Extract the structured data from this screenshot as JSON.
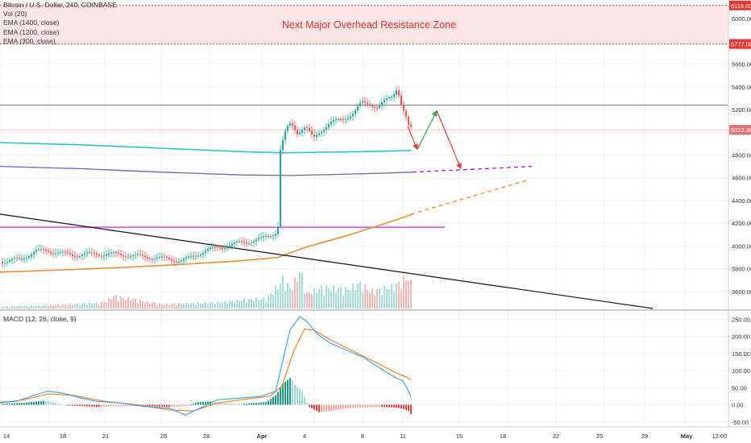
{
  "legend": {
    "symbol": "Bitcoin / U.S. Dollar, 240, COINBASE",
    "vol": "Vol (20)",
    "ema1": "EMA (1400, close)",
    "ema2": "EMA (1200, close)",
    "ema3": "EMA (300, close)"
  },
  "annotation": {
    "zone_text": "Next Major Overhead Resistance Zone"
  },
  "macd": {
    "title": "MACD (12, 26, close, 9)"
  },
  "colors": {
    "bg": "#ffffff",
    "up": "#26a69a",
    "down": "#ef5350",
    "grid": "#f2f2f2",
    "zone_fill": "#fde6e6",
    "zone_border": "#e53935",
    "ema_teal": "#27c4c4",
    "ema_purple": "#7e57c2",
    "ema_orange": "#f08d2e",
    "magenta": "#e040fb",
    "trend": "#111111",
    "macd_line": "#2196f3",
    "signal_line": "#ff6d00"
  },
  "chart_data": [
    {
      "type": "candlestick",
      "title": "Bitcoin / U.S. Dollar, 240, COINBASE",
      "ylim": [
        3450,
        6150
      ],
      "y_ticks": [
        3600,
        3800,
        4000,
        4200,
        4400,
        4600,
        4800,
        5000,
        5200,
        5400,
        5600,
        6000
      ],
      "y_tick_labels": [
        "3600.00",
        "3800.00",
        "4000.00",
        "4200.00",
        "4400.00",
        "4600.00",
        "4800.00",
        "5000.00",
        "5200.00",
        "5400.00",
        "5600.00",
        "6000.00"
      ],
      "x_tick_labels": [
        "14",
        "18",
        "21",
        "25",
        "28",
        "Apr",
        "4",
        "8",
        "11",
        "15",
        "18",
        "22",
        "25",
        "29",
        "May",
        "12:00"
      ],
      "resistance_zone": {
        "low": 5777,
        "high": 6116,
        "label_low": "5777.00",
        "label_high": "6116.00"
      },
      "current_price": {
        "value": 5022.3,
        "label": "5022.30"
      },
      "horizontal_level": 5240,
      "magenta_level": 4165,
      "price_path": [
        [
          0,
          3860
        ],
        [
          25,
          3880
        ],
        [
          45,
          3955
        ],
        [
          60,
          3960
        ],
        [
          90,
          3920
        ],
        [
          120,
          3930
        ],
        [
          150,
          3925
        ],
        [
          180,
          3905
        ],
        [
          210,
          3885
        ],
        [
          225,
          3870
        ],
        [
          235,
          3890
        ],
        [
          255,
          3960
        ],
        [
          275,
          3990
        ],
        [
          300,
          4030
        ],
        [
          325,
          4060
        ],
        [
          343,
          4120
        ],
        [
          346,
          4180
        ],
        [
          348,
          4820
        ],
        [
          352,
          4920
        ],
        [
          356,
          5020
        ],
        [
          362,
          5080
        ],
        [
          370,
          5000
        ],
        [
          380,
          5050
        ],
        [
          390,
          4940
        ],
        [
          398,
          5010
        ],
        [
          410,
          5080
        ],
        [
          420,
          5100
        ],
        [
          430,
          5130
        ],
        [
          440,
          5170
        ],
        [
          450,
          5260
        ],
        [
          460,
          5250
        ],
        [
          470,
          5220
        ],
        [
          480,
          5280
        ],
        [
          488,
          5320
        ],
        [
          494,
          5400
        ],
        [
          500,
          5220
        ],
        [
          504,
          5150
        ],
        [
          508,
          5050
        ],
        [
          512,
          5022
        ]
      ],
      "volume_path": [
        [
          0,
          0.05
        ],
        [
          60,
          0.07
        ],
        [
          130,
          0.15
        ],
        [
          140,
          0.3
        ],
        [
          200,
          0.1
        ],
        [
          270,
          0.15
        ],
        [
          330,
          0.25
        ],
        [
          345,
          0.55
        ],
        [
          350,
          0.7
        ],
        [
          360,
          0.45
        ],
        [
          372,
          0.9
        ],
        [
          380,
          0.35
        ],
        [
          400,
          0.5
        ],
        [
          430,
          0.45
        ],
        [
          445,
          0.6
        ],
        [
          460,
          0.4
        ],
        [
          490,
          0.55
        ],
        [
          505,
          0.75
        ],
        [
          512,
          0.5
        ]
      ],
      "ema_teal": [
        [
          0,
          4910
        ],
        [
          100,
          4890
        ],
        [
          200,
          4860
        ],
        [
          300,
          4830
        ],
        [
          350,
          4820
        ],
        [
          400,
          4825
        ],
        [
          450,
          4830
        ],
        [
          510,
          4840
        ]
      ],
      "ema_purple": [
        [
          0,
          4700
        ],
        [
          100,
          4680
        ],
        [
          200,
          4650
        ],
        [
          300,
          4625
        ],
        [
          360,
          4620
        ],
        [
          420,
          4630
        ],
        [
          470,
          4640
        ],
        [
          512,
          4650
        ]
      ],
      "ema_orange": [
        [
          0,
          3770
        ],
        [
          80,
          3790
        ],
        [
          150,
          3810
        ],
        [
          230,
          3840
        ],
        [
          300,
          3870
        ],
        [
          345,
          3900
        ],
        [
          380,
          3990
        ],
        [
          430,
          4090
        ],
        [
          470,
          4180
        ],
        [
          500,
          4250
        ],
        [
          512,
          4280
        ]
      ],
      "trendline": [
        [
          0,
          4280
        ],
        [
          810,
          3450
        ]
      ],
      "projection_purple": [
        [
          512,
          4650
        ],
        [
          660,
          4700
        ]
      ],
      "projection_orange": [
        [
          510,
          4280
        ],
        [
          655,
          4580
        ]
      ],
      "forecast_path": [
        [
          506,
          5050
        ],
        [
          518,
          4850
        ],
        [
          542,
          5190
        ],
        [
          572,
          4680
        ]
      ]
    },
    {
      "type": "macd",
      "title": "MACD (12, 26, close, 9)",
      "ylim": [
        -60,
        270
      ],
      "y_ticks": [
        -50,
        0,
        50,
        100,
        150,
        200,
        250
      ],
      "y_tick_labels": [
        "-50.00",
        "0.00",
        "50.00",
        "100.00",
        "150.00",
        "200.00",
        "250.00"
      ],
      "macd_line": [
        [
          0,
          8
        ],
        [
          20,
          10
        ],
        [
          45,
          30
        ],
        [
          60,
          40
        ],
        [
          80,
          33
        ],
        [
          100,
          20
        ],
        [
          120,
          10
        ],
        [
          150,
          5
        ],
        [
          180,
          -5
        ],
        [
          210,
          -10
        ],
        [
          230,
          -30
        ],
        [
          250,
          -8
        ],
        [
          270,
          15
        ],
        [
          300,
          20
        ],
        [
          325,
          25
        ],
        [
          342,
          40
        ],
        [
          350,
          120
        ],
        [
          360,
          220
        ],
        [
          372,
          258
        ],
        [
          380,
          245
        ],
        [
          395,
          205
        ],
        [
          410,
          180
        ],
        [
          430,
          160
        ],
        [
          450,
          140
        ],
        [
          470,
          110
        ],
        [
          490,
          80
        ],
        [
          500,
          70
        ],
        [
          506,
          45
        ],
        [
          510,
          22
        ]
      ],
      "signal_line": [
        [
          0,
          5
        ],
        [
          30,
          15
        ],
        [
          60,
          32
        ],
        [
          90,
          28
        ],
        [
          130,
          10
        ],
        [
          170,
          0
        ],
        [
          210,
          -15
        ],
        [
          240,
          -18
        ],
        [
          270,
          5
        ],
        [
          300,
          15
        ],
        [
          335,
          25
        ],
        [
          350,
          55
        ],
        [
          365,
          160
        ],
        [
          378,
          222
        ],
        [
          390,
          218
        ],
        [
          410,
          190
        ],
        [
          440,
          155
        ],
        [
          470,
          120
        ],
        [
          490,
          95
        ],
        [
          505,
          80
        ],
        [
          510,
          72
        ]
      ],
      "histogram": [
        [
          0,
          2
        ],
        [
          30,
          6
        ],
        [
          45,
          10
        ],
        [
          55,
          12
        ],
        [
          70,
          4
        ],
        [
          90,
          -3
        ],
        [
          120,
          -6
        ],
        [
          150,
          -5
        ],
        [
          180,
          -4
        ],
        [
          210,
          -6
        ],
        [
          230,
          -4
        ],
        [
          245,
          8
        ],
        [
          260,
          10
        ],
        [
          280,
          4
        ],
        [
          300,
          3
        ],
        [
          330,
          8
        ],
        [
          342,
          30
        ],
        [
          350,
          62
        ],
        [
          360,
          80
        ],
        [
          366,
          55
        ],
        [
          374,
          40
        ],
        [
          382,
          -5
        ],
        [
          395,
          -22
        ],
        [
          410,
          -18
        ],
        [
          430,
          -10
        ],
        [
          450,
          -8
        ],
        [
          470,
          -6
        ],
        [
          490,
          -8
        ],
        [
          500,
          -12
        ],
        [
          506,
          -18
        ],
        [
          510,
          -30
        ]
      ]
    }
  ]
}
